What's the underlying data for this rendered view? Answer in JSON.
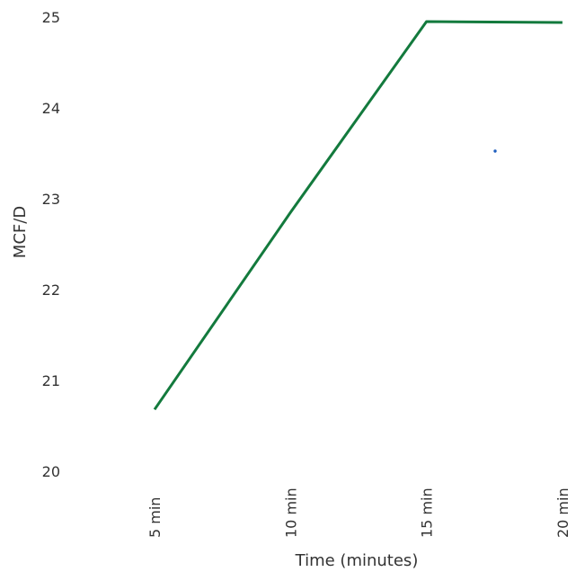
{
  "chart_data": {
    "type": "line",
    "title": "",
    "xlabel": "Time (minutes)",
    "ylabel": "MCF/D",
    "categories": [
      "5 min",
      "10 min",
      "15 min",
      "20 min"
    ],
    "series": [
      {
        "values": [
          20.68,
          22.85,
          24.95,
          24.94
        ]
      }
    ],
    "ylim": [
      20,
      25
    ],
    "yticks": [
      20,
      21,
      22,
      23,
      24,
      25
    ],
    "grid": false,
    "legend": "none",
    "colors": {
      "line": "#137a3d",
      "text": "#333333",
      "stray_mark": "#1f5fbf"
    }
  }
}
